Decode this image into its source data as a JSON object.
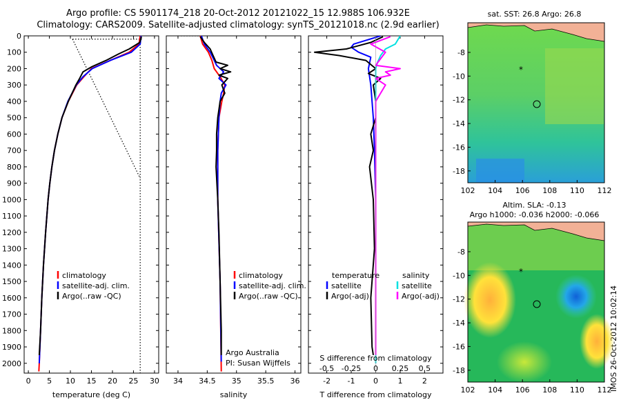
{
  "header": {
    "title_line1": "Argo profile: CS 5901174_218 20-Oct-2012 20121022_15 12.988S 106.932E",
    "title_line2": "Climatology: CARS2009. Satellite-adjusted climatology: synTS_20121018.nc (2.9d earlier)"
  },
  "colors": {
    "climatology": "#ff0000",
    "satellite": "#0000ff",
    "argo": "#000000",
    "sal_satellite": "#00e0e0",
    "sal_argo": "#ff00ff"
  },
  "legend": {
    "climatology": "climatology",
    "satellite_adj": "satellite-adj. clim.",
    "argo_raw": "Argo(..raw -QC)",
    "temperature": "temperature",
    "salinity": "salinity",
    "satellite": "satellite",
    "argo_adj": "Argo(-adj)"
  },
  "credit": {
    "line1": "Argo Australia",
    "line2": "PI: Susan Wijffels"
  },
  "chart_data": [
    {
      "type": "line",
      "panel": "temperature",
      "xlabel": "temperature (deg C)",
      "ylabel": "",
      "xlim": [
        -1,
        31
      ],
      "ylim": [
        2060,
        0
      ],
      "x_ticks": [
        0,
        5,
        10,
        15,
        20,
        25,
        30
      ],
      "y_ticks": [
        0,
        100,
        200,
        300,
        400,
        500,
        600,
        700,
        800,
        900,
        1000,
        1100,
        1200,
        1300,
        1400,
        1500,
        1600,
        1700,
        1800,
        1900,
        2000
      ],
      "series": [
        {
          "name": "climatology",
          "depth": [
            0,
            50,
            100,
            150,
            200,
            250,
            300,
            400,
            500,
            600,
            700,
            800,
            900,
            1000,
            1200,
            1400,
            1600,
            1800,
            2000,
            2050
          ],
          "values": [
            26.6,
            26.3,
            24.0,
            19.5,
            15.0,
            13.2,
            11.5,
            9.5,
            8.0,
            7.0,
            6.2,
            5.6,
            5.1,
            4.7,
            4.1,
            3.6,
            3.2,
            2.9,
            2.6,
            2.5
          ]
        },
        {
          "name": "satellite-adj. clim.",
          "depth": [
            0,
            50,
            100,
            150,
            200,
            250,
            300,
            400,
            500,
            600,
            700,
            800,
            900,
            1000,
            1200,
            1400,
            1600,
            1800,
            2000
          ],
          "values": [
            26.8,
            26.6,
            24.5,
            19.5,
            15.2,
            13.0,
            11.4,
            9.4,
            8.0,
            7.0,
            6.2,
            5.6,
            5.1,
            4.7,
            4.1,
            3.6,
            3.2,
            2.9,
            2.6
          ]
        },
        {
          "name": "Argo(..raw -QC)",
          "depth": [
            5,
            40,
            80,
            110,
            150,
            190,
            220,
            260,
            300,
            400,
            500,
            600,
            700,
            800,
            900,
            1000,
            1200,
            1400,
            1600,
            1800,
            1950
          ],
          "values": [
            26.9,
            26.5,
            24.0,
            21.5,
            18.5,
            15.0,
            13.0,
            12.2,
            11.3,
            9.5,
            8.0,
            7.0,
            6.2,
            5.6,
            5.1,
            4.7,
            4.1,
            3.6,
            3.2,
            2.9,
            2.6
          ]
        }
      ]
    },
    {
      "type": "line",
      "panel": "salinity",
      "xlabel": "salinity",
      "ylabel": "",
      "xlim": [
        33.8,
        36.1
      ],
      "ylim": [
        2060,
        0
      ],
      "x_ticks": [
        34,
        34.5,
        35,
        35.5,
        36
      ],
      "series": [
        {
          "name": "climatology",
          "depth": [
            0,
            50,
            100,
            150,
            200,
            250,
            300,
            350,
            400,
            500,
            700,
            1000,
            1500,
            2050
          ],
          "values": [
            34.38,
            34.42,
            34.52,
            34.58,
            34.62,
            34.72,
            34.8,
            34.78,
            34.75,
            34.7,
            34.68,
            34.68,
            34.72,
            34.74
          ]
        },
        {
          "name": "satellite-adj. clim.",
          "depth": [
            0,
            50,
            100,
            150,
            180,
            220,
            260,
            300,
            350,
            400,
            500,
            700,
            1000,
            1500,
            1990
          ],
          "values": [
            34.4,
            34.45,
            34.55,
            34.62,
            34.66,
            34.78,
            34.7,
            34.82,
            34.74,
            34.72,
            34.7,
            34.68,
            34.68,
            34.72,
            34.74
          ]
        },
        {
          "name": "Argo(..raw -QC)",
          "depth": [
            5,
            40,
            80,
            120,
            160,
            180,
            200,
            220,
            240,
            260,
            300,
            350,
            400,
            500,
            600,
            700,
            800,
            1000,
            1200,
            1500,
            1800,
            1950
          ],
          "values": [
            34.38,
            34.45,
            34.55,
            34.6,
            34.65,
            34.85,
            34.72,
            34.9,
            34.7,
            34.85,
            34.75,
            34.8,
            34.72,
            34.68,
            34.66,
            34.66,
            34.65,
            34.68,
            34.7,
            34.72,
            34.74,
            34.74
          ]
        }
      ]
    },
    {
      "type": "line",
      "panel": "differences",
      "xlabel": "T difference from climatology",
      "xlabel_top": "S difference from climatology",
      "xlim": [
        -2.75,
        2.75
      ],
      "ylim": [
        2060,
        0
      ],
      "x_ticks": [
        -2,
        -1,
        0,
        1,
        2
      ],
      "x_ticks_top": [
        -0.5,
        -0.25,
        0,
        0.25,
        0.5
      ],
      "series": [
        {
          "name": "temperature satellite",
          "depth": [
            0,
            50,
            70,
            100,
            130,
            200,
            300,
            400,
            500,
            700,
            1000,
            1500,
            2000
          ],
          "values": [
            0.2,
            -0.9,
            -1.0,
            -0.7,
            -0.2,
            -0.3,
            -0.2,
            -0.15,
            -0.1,
            -0.05,
            0,
            0,
            0
          ]
        },
        {
          "name": "temperature Argo(-adj)",
          "depth": [
            5,
            40,
            80,
            100,
            120,
            150,
            200,
            230,
            260,
            300,
            400,
            500,
            600,
            700,
            800,
            1000,
            1300,
            1600,
            1900,
            1950
          ],
          "values": [
            0.3,
            -0.2,
            -1.2,
            -2.5,
            -1.5,
            -0.4,
            0.0,
            -0.3,
            0.2,
            -0.1,
            0,
            0,
            -0.2,
            -0.1,
            -0.25,
            -0.1,
            -0.05,
            -0.2,
            -0.15,
            -0.1
          ]
        },
        {
          "name": "salinity satellite",
          "depth": [
            0,
            50,
            80,
            120,
            160,
            200,
            300,
            500,
            800,
            1200,
            1600,
            2000
          ],
          "values": [
            0.25,
            0.2,
            0.1,
            0.05,
            0.02,
            0.0,
            0.0,
            0.0,
            0.0,
            0.0,
            0.0,
            0.0
          ]
        },
        {
          "name": "salinity Argo(-adj)",
          "depth": [
            5,
            50,
            100,
            180,
            200,
            220,
            240,
            260,
            300,
            350,
            400,
            500,
            700,
            1000,
            1500,
            1950
          ],
          "values": [
            0.15,
            -0.05,
            0.1,
            0.0,
            0.25,
            0.1,
            0.15,
            0.0,
            0.1,
            0.05,
            0.0,
            0.0,
            0.0,
            0.0,
            0.0,
            0.0
          ]
        }
      ]
    },
    {
      "type": "heatmap",
      "panel": "sst-map",
      "title": "sat. SST: 26.8 Argo: 26.8",
      "xlim": [
        102,
        112
      ],
      "ylim": [
        -19,
        -5.5
      ],
      "x_ticks": [
        102,
        104,
        106,
        108,
        110,
        112
      ],
      "y_ticks": [
        -8,
        -10,
        -12,
        -14,
        -16,
        -18
      ],
      "markers": {
        "argo": [
          106.932,
          -12.988
        ],
        "star": [
          105.7,
          -10.5
        ]
      }
    },
    {
      "type": "heatmap",
      "panel": "sla-map",
      "title_line1": "Altim. SLA: -0.13",
      "title_line2": "Argo h1000: -0.036 h2000: -0.066",
      "xlim": [
        102,
        112
      ],
      "ylim": [
        -19,
        -5.5
      ],
      "x_ticks": [
        102,
        104,
        106,
        108,
        110,
        112
      ],
      "y_ticks": [
        -8,
        -10,
        -12,
        -14,
        -16,
        -18
      ],
      "markers": {
        "argo": [
          106.932,
          -12.988
        ],
        "star": [
          105.7,
          -10.5
        ]
      }
    }
  ],
  "footer": {
    "stamp": "IMOS 26-Oct-2012 10:02:14"
  }
}
